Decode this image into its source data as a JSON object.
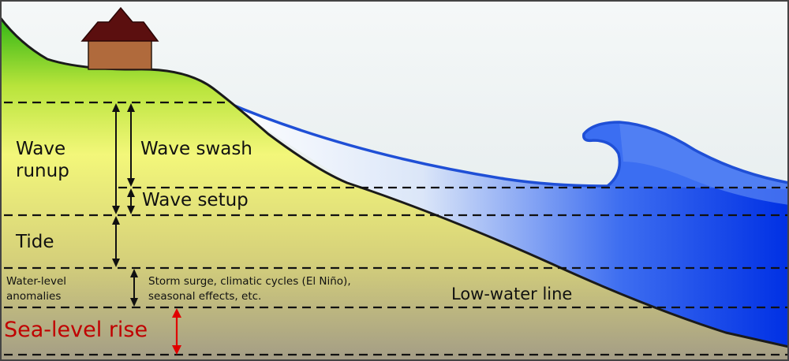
{
  "labels": {
    "wave_runup": [
      "Wave",
      "runup"
    ],
    "wave_swash": "Wave swash",
    "wave_setup": "Wave setup",
    "tide": "Tide",
    "water_level_anomalies": [
      "Water-level",
      "anomalies"
    ],
    "storm_surge_note": [
      "Storm surge, climatic cycles (El Niño),",
      "seasonal effects, etc."
    ],
    "low_water_line": "Low-water line",
    "sea_level_rise": "Sea-level rise"
  },
  "colors": {
    "sky": "#dfe8ea",
    "land_top": "#39b81a",
    "land_mid": "#f3f77a",
    "land_bottom": "#a59e83",
    "ocean_deep": "#0033e6",
    "ocean_light": "#ffffff",
    "house_roof": "#5b0f0f",
    "house_wall": "#b06a3c",
    "sea_level_arrow": "#e00000",
    "dashed_line": "#111111"
  },
  "icons": {
    "house": "house-icon",
    "breaking_wave": "breaking-wave-icon"
  }
}
